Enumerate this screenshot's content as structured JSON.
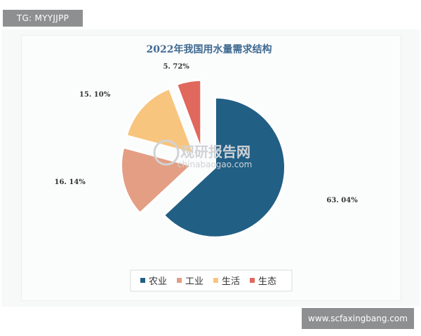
{
  "watermarks": {
    "top_left": "TG: MYYJJPP",
    "bottom_right": "www.scfaxingbang.com",
    "center_brand": "观研报告网",
    "center_domain": "chinabaogao.com"
  },
  "chart_data": {
    "type": "pie",
    "title": "2022年我国用水量需求结构",
    "categories": [
      "农业",
      "工业",
      "生活",
      "生态"
    ],
    "values": [
      63.04,
      16.14,
      15.1,
      5.72
    ],
    "labels": [
      "63. 04%",
      "16. 14%",
      "15. 10%",
      "5. 72%"
    ],
    "colors": [
      "#215f85",
      "#e39e83",
      "#f8c57f",
      "#e0685c"
    ],
    "exploded": true,
    "legend_position": "bottom"
  }
}
